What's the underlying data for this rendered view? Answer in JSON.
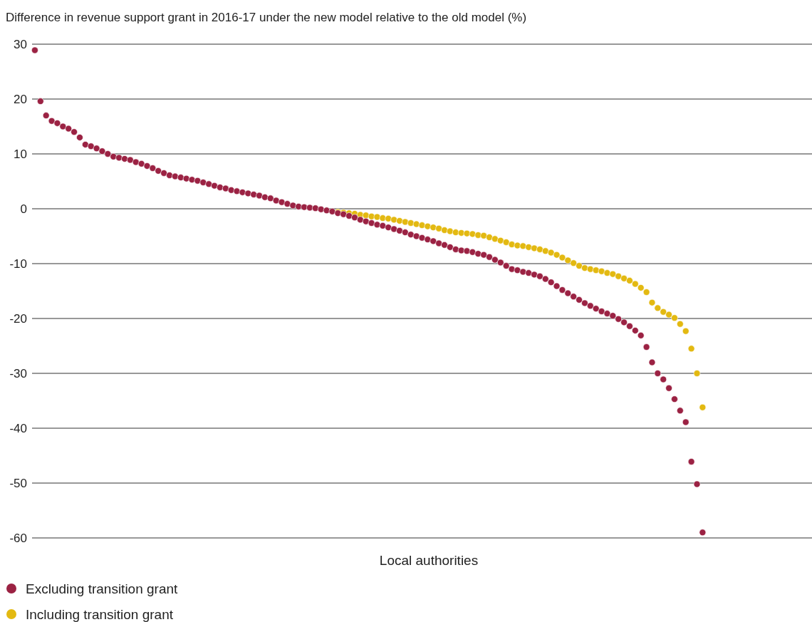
{
  "chart_data": {
    "type": "scatter",
    "title": "Difference in revenue support grant in 2016-17 under the new model relative to the old model (%)",
    "xlabel": "Local authorities",
    "categories": [
      null,
      null,
      null,
      null,
      null,
      null,
      null,
      null,
      null,
      null,
      null,
      null,
      null,
      null,
      null,
      null,
      null,
      null,
      null,
      null,
      null,
      null,
      null,
      null,
      null,
      null,
      null,
      null,
      null,
      null,
      null,
      null,
      null,
      null,
      null,
      null,
      null,
      null,
      null,
      null,
      null,
      null,
      null,
      null,
      null,
      null,
      null,
      null,
      null,
      null,
      null,
      null,
      null,
      null,
      null,
      null,
      null,
      null,
      null,
      null,
      null,
      null,
      null,
      null,
      null,
      null,
      null,
      null,
      null,
      null,
      null,
      null,
      null,
      null,
      null,
      null,
      null,
      null,
      null,
      null,
      null,
      null,
      null,
      null,
      null,
      null,
      null,
      null,
      null,
      null,
      null,
      null,
      null,
      null,
      null,
      null,
      null,
      null,
      null,
      null,
      null,
      null,
      null,
      null,
      null,
      null,
      null,
      null,
      null,
      null,
      null,
      null,
      null,
      null,
      null,
      null,
      null,
      null,
      null,
      null,
      null,
      null,
      null,
      null,
      null,
      null,
      null,
      null,
      null,
      null,
      null,
      null,
      null,
      null,
      null,
      null,
      null,
      null,
      null
    ],
    "series": [
      {
        "name": "Including transition grant",
        "color": "#e3b911",
        "values": [
          null,
          null,
          null,
          null,
          null,
          null,
          null,
          null,
          null,
          null,
          null,
          null,
          null,
          null,
          null,
          null,
          null,
          null,
          null,
          null,
          null,
          null,
          null,
          null,
          null,
          null,
          null,
          null,
          null,
          null,
          null,
          null,
          null,
          null,
          null,
          null,
          null,
          null,
          null,
          null,
          null,
          null,
          null,
          null,
          null,
          null,
          null,
          null,
          null,
          null,
          null,
          null,
          null,
          null,
          -0.6,
          -0.7,
          -0.8,
          -0.9,
          -1.1,
          -1.2,
          -1.4,
          -1.5,
          -1.7,
          -1.8,
          -2.0,
          -2.2,
          -2.4,
          -2.6,
          -2.8,
          -3.0,
          -3.2,
          -3.4,
          -3.6,
          -3.9,
          -4.1,
          -4.3,
          -4.4,
          -4.5,
          -4.6,
          -4.8,
          -4.9,
          -5.2,
          -5.5,
          -5.8,
          -6.1,
          -6.5,
          -6.7,
          -6.8,
          -7.0,
          -7.2,
          -7.4,
          -7.7,
          -8.0,
          -8.4,
          -8.9,
          -9.4,
          -9.9,
          -10.4,
          -10.8,
          -11.0,
          -11.2,
          -11.4,
          -11.7,
          -11.9,
          -12.3,
          -12.7,
          -13.1,
          -13.7,
          -14.4,
          -15.2,
          -17.1,
          -18.1,
          -18.8,
          -19.3,
          -19.9,
          -21.0,
          -22.3,
          -25.5,
          -30.0,
          -36.2,
          null,
          null,
          null,
          null,
          null,
          null,
          null,
          null,
          null,
          null,
          null,
          null,
          null,
          null,
          null,
          null,
          null,
          null,
          null
        ]
      },
      {
        "name": "Excluding transition grant",
        "color": "#9b2243",
        "values": [
          28.9,
          19.6,
          17.0,
          16.0,
          15.6,
          15.0,
          14.6,
          14.0,
          13.0,
          11.7,
          11.4,
          11.0,
          10.5,
          10.0,
          9.5,
          9.3,
          9.1,
          8.9,
          8.5,
          8.2,
          7.8,
          7.4,
          6.9,
          6.5,
          6.1,
          5.9,
          5.7,
          5.5,
          5.3,
          5.1,
          4.8,
          4.5,
          4.2,
          3.9,
          3.7,
          3.4,
          3.2,
          3.0,
          2.8,
          2.6,
          2.4,
          2.1,
          1.9,
          1.5,
          1.2,
          0.9,
          0.6,
          0.4,
          0.3,
          0.2,
          0.1,
          -0.1,
          -0.3,
          -0.5,
          -0.8,
          -1.0,
          -1.3,
          -1.6,
          -2.0,
          -2.3,
          -2.6,
          -2.9,
          -3.1,
          -3.4,
          -3.7,
          -4.0,
          -4.3,
          -4.7,
          -5.0,
          -5.3,
          -5.6,
          -5.9,
          -6.3,
          -6.6,
          -7.0,
          -7.4,
          -7.6,
          -7.7,
          -7.9,
          -8.2,
          -8.4,
          -8.8,
          -9.3,
          -9.8,
          -10.4,
          -11.0,
          -11.2,
          -11.5,
          -11.7,
          -12.0,
          -12.3,
          -12.8,
          -13.4,
          -14.1,
          -14.8,
          -15.4,
          -16.0,
          -16.6,
          -17.2,
          -17.7,
          -18.2,
          -18.7,
          -19.1,
          -19.5,
          -20.1,
          -20.7,
          -21.4,
          -22.2,
          -23.1,
          -25.2,
          -28.0,
          -30.0,
          -31.1,
          -32.7,
          -34.7,
          -36.8,
          -38.9,
          -46.1,
          -50.2,
          -59,
          null,
          null,
          null,
          null,
          null,
          null,
          null,
          null,
          null,
          null,
          null,
          null,
          null,
          null,
          null,
          null,
          null,
          null,
          null
        ]
      }
    ],
    "ylim": [
      -60,
      30
    ],
    "yticks": [
      30,
      20,
      10,
      0,
      -10,
      -20,
      -30,
      -40,
      -50,
      -60
    ],
    "grid": "y",
    "legend": "bottom left",
    "marker": "circle"
  }
}
